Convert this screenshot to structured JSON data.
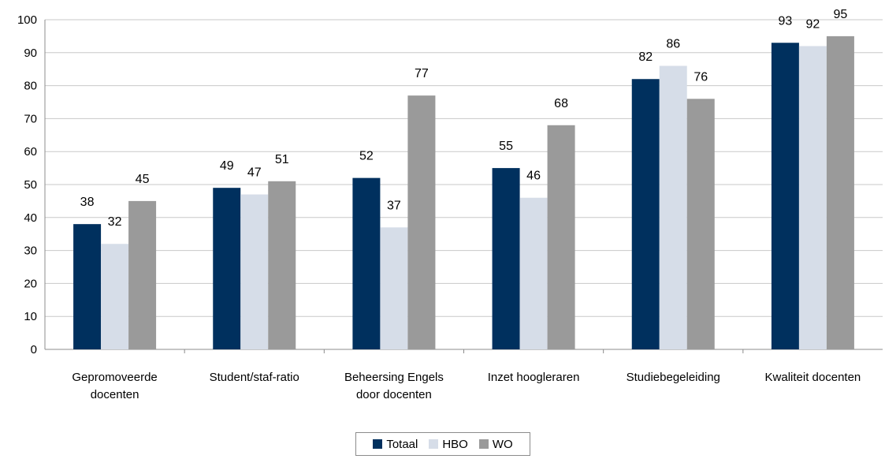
{
  "chart_data": {
    "type": "bar",
    "categories": [
      [
        "Gepromoveerde",
        "docenten"
      ],
      [
        "Student/staf-ratio"
      ],
      [
        "Beheersing Engels",
        "door docenten"
      ],
      [
        "Inzet hoogleraren"
      ],
      [
        "Studiebegeleiding"
      ],
      [
        "Kwaliteit docenten"
      ]
    ],
    "series": [
      {
        "name": "Totaal",
        "color": "#00305e",
        "values": [
          38,
          49,
          52,
          55,
          82,
          93
        ]
      },
      {
        "name": "HBO",
        "color": "#d6dde8",
        "values": [
          32,
          47,
          37,
          46,
          86,
          92
        ]
      },
      {
        "name": "WO",
        "color": "#9a9a9a",
        "values": [
          45,
          51,
          77,
          68,
          76,
          95
        ]
      }
    ],
    "ylim": [
      0,
      100
    ],
    "yticks": [
      0,
      10,
      20,
      30,
      40,
      50,
      60,
      70,
      80,
      90,
      100
    ],
    "grid": true,
    "legend_position": "bottom-center",
    "title": "",
    "xlabel": "",
    "ylabel": ""
  }
}
